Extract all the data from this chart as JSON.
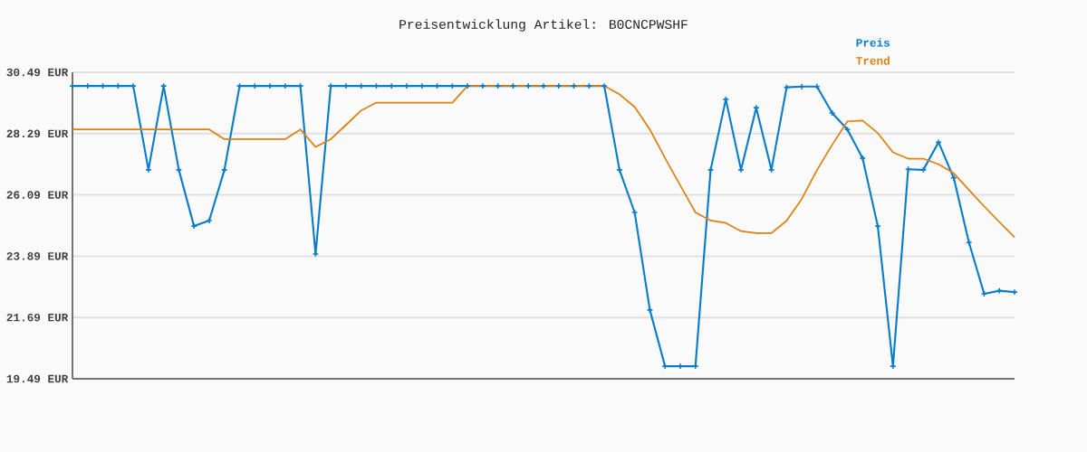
{
  "chart_data": {
    "type": "line",
    "title": "Preisentwicklung Artikel: B0CNCPWSHF",
    "categories": [
      null,
      null,
      null,
      null,
      null,
      null,
      null,
      null,
      null,
      null,
      null,
      null,
      null,
      null,
      null,
      null,
      null,
      null,
      null,
      null,
      null,
      null,
      null,
      null,
      null,
      null,
      null,
      null,
      null,
      null,
      null,
      null,
      null,
      null,
      null,
      null,
      null,
      null,
      null,
      null,
      null,
      null,
      null,
      null,
      null,
      null,
      null,
      null,
      null,
      null,
      null,
      null,
      null,
      null,
      null,
      null,
      null,
      null,
      null,
      null,
      null,
      null,
      null
    ],
    "series": [
      {
        "name": "Preis",
        "color": "#0a7ccc",
        "marker": "cross",
        "values": [
          30.0,
          30.0,
          30.0,
          30.0,
          30.0,
          26.99,
          30.0,
          26.99,
          24.97,
          25.17,
          26.99,
          30.0,
          30.0,
          30.0,
          30.0,
          30.0,
          23.97,
          30.0,
          30.0,
          30.0,
          30.0,
          30.0,
          30.0,
          30.0,
          30.0,
          30.0,
          30.0,
          30.0,
          30.0,
          30.0,
          30.0,
          30.0,
          30.0,
          30.0,
          30.0,
          30.0,
          26.99,
          25.46,
          21.96,
          19.94,
          19.94,
          19.94,
          26.99,
          29.52,
          26.99,
          29.22,
          26.99,
          29.95,
          29.98,
          29.98,
          29.03,
          28.44,
          27.41,
          24.97,
          19.94,
          27.01,
          26.99,
          27.98,
          26.7,
          24.38,
          22.54,
          22.65,
          22.6
        ]
      },
      {
        "name": "Trend",
        "color": "#e07f10",
        "marker": "none",
        "values": [
          28.44,
          28.44,
          28.44,
          28.44,
          28.44,
          28.44,
          28.44,
          28.44,
          28.44,
          28.44,
          28.09,
          28.09,
          28.09,
          28.09,
          28.09,
          28.44,
          27.81,
          28.09,
          28.6,
          29.12,
          29.4,
          29.4,
          29.4,
          29.4,
          29.4,
          29.4,
          30.0,
          30.0,
          30.0,
          30.0,
          30.0,
          30.0,
          30.0,
          30.0,
          30.0,
          30.0,
          29.7,
          29.25,
          28.44,
          27.41,
          26.43,
          25.46,
          25.17,
          25.08,
          24.79,
          24.72,
          24.72,
          25.16,
          25.95,
          26.98,
          27.89,
          28.73,
          28.76,
          28.31,
          27.62,
          27.39,
          27.39,
          27.19,
          26.87,
          26.27,
          25.68,
          25.12,
          24.57
        ]
      }
    ],
    "ylim": [
      19.49,
      30.49
    ],
    "yticks": [
      {
        "value": 19.49,
        "label": "19.49 EUR"
      },
      {
        "value": 21.69,
        "label": "21.69 EUR"
      },
      {
        "value": 23.89,
        "label": "23.89 EUR"
      },
      {
        "value": 26.09,
        "label": "26.09 EUR"
      },
      {
        "value": 28.29,
        "label": "28.29 EUR"
      },
      {
        "value": 30.49,
        "label": "30.49 EUR"
      }
    ],
    "grid": "y",
    "legend": "top right",
    "tick_labels": "y"
  }
}
